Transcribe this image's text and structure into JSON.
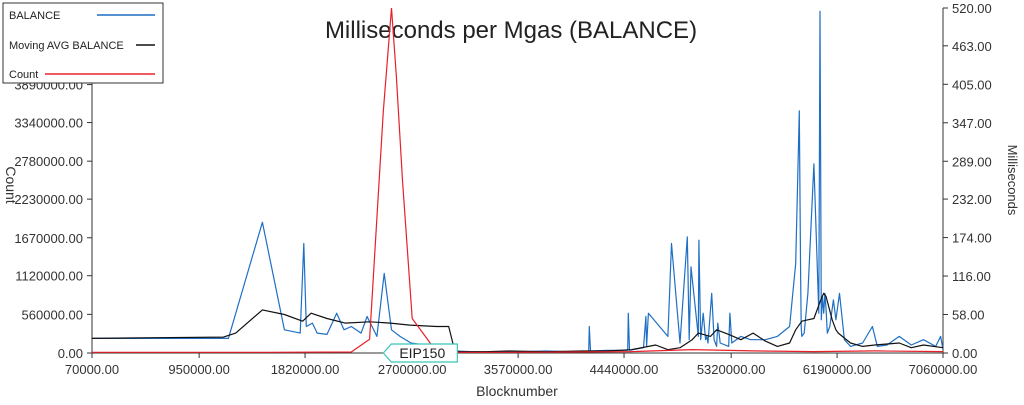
{
  "chart_data": {
    "type": "line",
    "title": "Milliseconds per Mgas (BALANCE)",
    "xlabel": "Blocknumber",
    "ylabel_left": "Count",
    "ylabel_right": "Milliseconds",
    "xlim": [
      70000,
      7060000
    ],
    "ylim_left": [
      0,
      5000000
    ],
    "ylim_right": [
      0,
      520
    ],
    "x_ticks": [
      "70000.00",
      "950000.00",
      "1820000.00",
      "2700000.00",
      "3570000.00",
      "4440000.00",
      "5320000.00",
      "6190000.00",
      "7060000.00"
    ],
    "y_left_ticks": [
      "0.00",
      "560000.00",
      "1120000.00",
      "1670000.00",
      "2230000.00",
      "2780000.00",
      "3340000.00",
      "3890000.00"
    ],
    "y_right_ticks": [
      "0.00",
      "58.00",
      "116.00",
      "174.00",
      "232.00",
      "289.00",
      "347.00",
      "405.00",
      "463.00",
      "520.00"
    ],
    "grid": false,
    "legend_position": "top-left",
    "annotation": {
      "label": "EIP150",
      "x": 2463000
    },
    "colors": {
      "balance": "#1f6fc4",
      "moving_avg": "#111111",
      "count": "#e8202a",
      "annotation": "#39c6b8"
    },
    "series": [
      {
        "name": "BALANCE",
        "axis": "right",
        "x": [
          70000,
          400000,
          800000,
          1190000,
          1470000,
          1650000,
          1780000,
          1810000,
          1830000,
          1880000,
          1920000,
          2000000,
          2080000,
          2140000,
          2200000,
          2280000,
          2330000,
          2410000,
          2470000,
          2530000,
          2600000,
          2690000,
          2800000,
          2950000,
          3050000,
          3200000,
          3400000,
          3600000,
          3800000,
          4000000,
          4150000,
          4155000,
          4165000,
          4300000,
          4470000,
          4475000,
          4485000,
          4600000,
          4620000,
          4625000,
          4640000,
          4800000,
          4830000,
          4900000,
          4960000,
          4975000,
          4990000,
          5050000,
          5055000,
          5070000,
          5090000,
          5110000,
          5120000,
          5130000,
          5160000,
          5180000,
          5200000,
          5210000,
          5230000,
          5300000,
          5310000,
          5325000,
          5400000,
          5480000,
          5600000,
          5700000,
          5800000,
          5850000,
          5880000,
          5890000,
          5895000,
          5900000,
          5920000,
          5950000,
          6000000,
          6040000,
          6050000,
          6060000,
          6070000,
          6080000,
          6090000,
          6100000,
          6110000,
          6130000,
          6160000,
          6180000,
          6210000,
          6250000,
          6300000,
          6400000,
          6480000,
          6520000,
          6600000,
          6700000,
          6800000,
          6900000,
          7000000,
          7040000,
          7060000
        ],
        "values": [
          22,
          22,
          22,
          22,
          197,
          35,
          30,
          165,
          40,
          45,
          30,
          28,
          60,
          35,
          40,
          30,
          55,
          25,
          120,
          35,
          25,
          15,
          12,
          5,
          3,
          2,
          2,
          2,
          3,
          2,
          3,
          40,
          3,
          4,
          4,
          60,
          4,
          8,
          55,
          10,
          60,
          25,
          165,
          15,
          175,
          20,
          130,
          25,
          170,
          20,
          60,
          20,
          25,
          15,
          90,
          20,
          10,
          45,
          15,
          10,
          60,
          15,
          25,
          20,
          20,
          25,
          40,
          135,
          365,
          120,
          40,
          25,
          30,
          90,
          285,
          60,
          515,
          50,
          85,
          60,
          90,
          65,
          30,
          40,
          80,
          50,
          90,
          20,
          10,
          15,
          40,
          10,
          12,
          25,
          12,
          20,
          10,
          25,
          5
        ]
      },
      {
        "name": "Moving AVG BALANCE",
        "axis": "right",
        "x": [
          70000,
          600000,
          1150000,
          1250000,
          1470000,
          1650000,
          1800000,
          1870000,
          2000000,
          2150000,
          2350000,
          2520000,
          2680000,
          2900000,
          3000000,
          3050000,
          3100000,
          3300000,
          3500000,
          3800000,
          4100000,
          4300000,
          4500000,
          4700000,
          4800000,
          4900000,
          5000000,
          5050000,
          5150000,
          5200000,
          5300000,
          5400000,
          5500000,
          5600000,
          5700000,
          5800000,
          5850000,
          5900000,
          5950000,
          6000000,
          6060000,
          6080000,
          6100000,
          6150000,
          6180000,
          6200000,
          6300000,
          6400000,
          6500000,
          6700000,
          6800000,
          6900000,
          7060000
        ],
        "values": [
          22,
          23,
          24,
          30,
          65,
          58,
          48,
          60,
          52,
          45,
          47,
          45,
          42,
          40,
          40,
          3,
          2,
          2,
          3,
          2,
          3,
          3,
          5,
          12,
          5,
          8,
          20,
          30,
          25,
          35,
          28,
          20,
          30,
          18,
          10,
          15,
          35,
          48,
          50,
          52,
          82,
          90,
          85,
          50,
          35,
          30,
          15,
          10,
          12,
          15,
          8,
          12,
          8
        ]
      },
      {
        "name": "Count",
        "axis": "left",
        "x": [
          70000,
          1500000,
          2200000,
          2350000,
          2463000,
          2530000,
          2570000,
          2620000,
          2700000,
          2900000,
          3100000,
          3500000,
          4000000,
          4500000,
          5000000,
          5500000,
          6000000,
          6500000,
          7060000
        ],
        "values": [
          10000,
          10000,
          15000,
          200000,
          3500000,
          5000000,
          4000000,
          2500000,
          500000,
          20000,
          10000,
          10000,
          15000,
          20000,
          50000,
          30000,
          20000,
          30000,
          20000
        ]
      }
    ]
  }
}
